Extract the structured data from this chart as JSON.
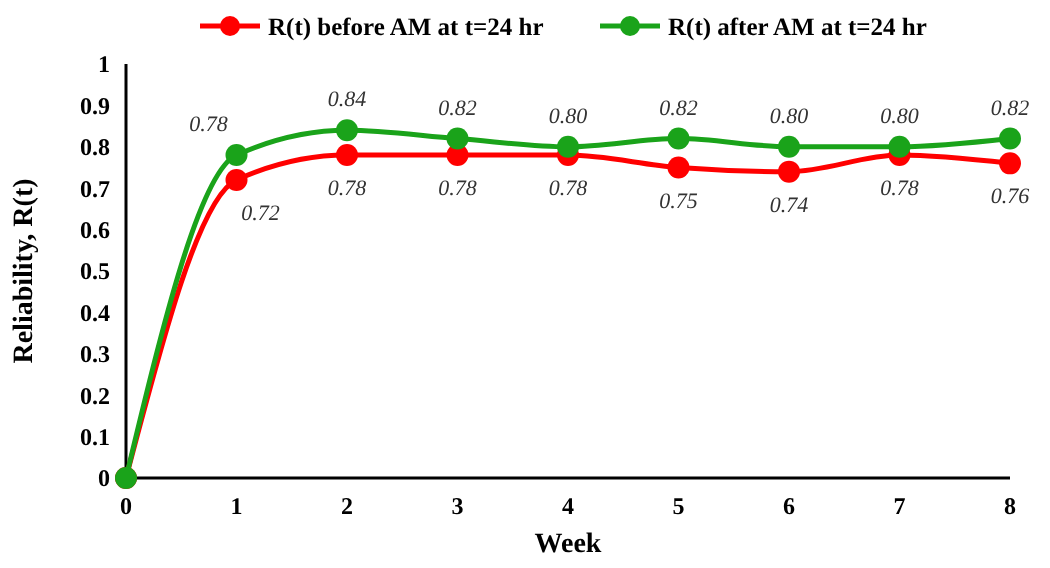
{
  "chart_data": {
    "type": "line",
    "xlabel": "Week",
    "ylabel": "Reliability, R(t)",
    "x": [
      0,
      1,
      2,
      3,
      4,
      5,
      6,
      7,
      8
    ],
    "xlim": [
      0,
      8
    ],
    "xticks": [
      0,
      1,
      2,
      3,
      4,
      5,
      6,
      7,
      8
    ],
    "ylim": [
      0,
      1
    ],
    "yticks": [
      0,
      0.1,
      0.2,
      0.3,
      0.4,
      0.5,
      0.6,
      0.7,
      0.8,
      0.9,
      1
    ],
    "grid": false,
    "legend": "top",
    "marker": "circle",
    "line_style": "solid",
    "series": [
      {
        "name": "R(t) before AM at t=24 hr",
        "color": "#ff0000",
        "values": [
          0,
          0.72,
          0.78,
          0.78,
          0.78,
          0.75,
          0.74,
          0.78,
          0.76
        ],
        "value_labels": [
          null,
          "0.72",
          "0.78",
          "0.78",
          "0.78",
          "0.75",
          "0.74",
          "0.78",
          "0.76"
        ]
      },
      {
        "name": "R(t) after AM at t=24 hr",
        "color": "#1aa31a",
        "values": [
          0,
          0.78,
          0.84,
          0.82,
          0.8,
          0.82,
          0.8,
          0.8,
          0.82
        ],
        "value_labels": [
          null,
          "0.78",
          "0.84",
          "0.82",
          "0.80",
          "0.82",
          "0.80",
          "0.80",
          "0.82"
        ]
      }
    ]
  }
}
